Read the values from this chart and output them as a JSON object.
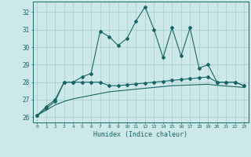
{
  "xlabel": "Humidex (Indice chaleur)",
  "ylabel": "",
  "xlim": [
    -0.5,
    23.5
  ],
  "ylim": [
    25.7,
    32.6
  ],
  "yticks": [
    26,
    27,
    28,
    29,
    30,
    31,
    32
  ],
  "xticks": [
    0,
    1,
    2,
    3,
    4,
    5,
    6,
    7,
    8,
    9,
    10,
    11,
    12,
    13,
    14,
    15,
    16,
    17,
    18,
    19,
    20,
    21,
    22,
    23
  ],
  "background_color": "#cce8e8",
  "grid_color": "#aacccc",
  "line_color": "#1a6666",
  "series1": [
    26.1,
    26.6,
    27.0,
    28.0,
    28.0,
    28.3,
    28.5,
    30.9,
    30.6,
    30.1,
    30.5,
    31.5,
    32.3,
    31.0,
    29.4,
    31.1,
    29.5,
    31.1,
    28.8,
    29.0,
    28.0,
    28.0,
    28.0,
    27.8
  ],
  "series2": [
    26.1,
    26.5,
    26.9,
    28.0,
    28.0,
    28.0,
    28.0,
    28.0,
    27.8,
    27.8,
    27.85,
    27.9,
    27.95,
    28.0,
    28.05,
    28.1,
    28.15,
    28.2,
    28.25,
    28.3,
    28.0,
    28.0,
    28.0,
    27.8
  ],
  "series3": [
    26.1,
    26.4,
    26.7,
    26.9,
    27.05,
    27.15,
    27.25,
    27.35,
    27.45,
    27.5,
    27.55,
    27.6,
    27.65,
    27.7,
    27.75,
    27.8,
    27.82,
    27.84,
    27.86,
    27.88,
    27.82,
    27.78,
    27.74,
    27.7
  ]
}
